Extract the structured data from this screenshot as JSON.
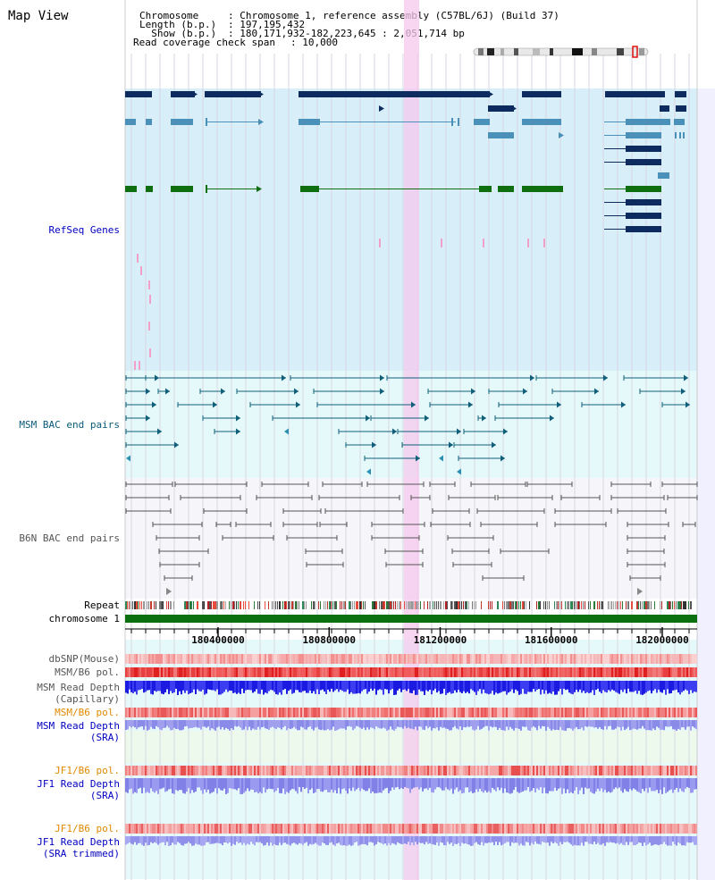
{
  "page_title": "Map View",
  "header": {
    "k_chromosome": "Chromosome     ",
    "v_chromosome": ": Chromosome 1, reference assembly (C57BL/6J) (Build 37)",
    "k_length": "Length (b.p.) ",
    "v_length": ": 197,195,432",
    "k_show": "  Show (b.p.) ",
    "v_show": ": 180,171,932-182,223,645 : 2,051,714 bp",
    "k_coverage": "Read coverage check span ",
    "v_coverage": ": 10,000"
  },
  "tracks": {
    "refseq": "RefSeq Genes",
    "msm_bac": "MSM BAC end pairs",
    "b6n_bac": "B6N BAC end pairs",
    "repeat": "Repeat",
    "chrom": "chromosome 1",
    "dbsnp": "dbSNP(Mouse)",
    "msm_pol_1": "MSM/B6 pol.",
    "msm_depth_cap_1": "MSM Read Depth",
    "msm_depth_cap_2": "(Capillary)",
    "msm_pol_2": "MSM/B6 pol.",
    "msm_depth_sra_1": "MSM Read Depth",
    "msm_depth_sra_2": "(SRA)",
    "jf1_pol_1": "JF1/B6 pol.",
    "jf1_depth_sra_1": "JF1 Read Depth",
    "jf1_depth_sra_2": "(SRA)",
    "jf1_pol_2": "JF1/B6 pol.",
    "jf1_depth_trim_1": "JF1 Read Depth",
    "jf1_depth_trim_2": "(SRA trimmed)"
  },
  "ruler": {
    "ticks": [
      "180400000",
      "180800000",
      "181200000",
      "181600000",
      "182000000"
    ]
  },
  "colors": {
    "refseq_dark": "#0d2b5e",
    "refseq_light": "#4a90b8",
    "refseq_green": "#0e6e10",
    "msm_bac_line": "#0f5f7a",
    "b6n_bac_line": "#555555",
    "highlight": "#f6c8ee",
    "label_blue": "#0000c0",
    "label_teal": "#0a5a78",
    "label_orange": "#e08a00",
    "label_gray": "#555555"
  }
}
